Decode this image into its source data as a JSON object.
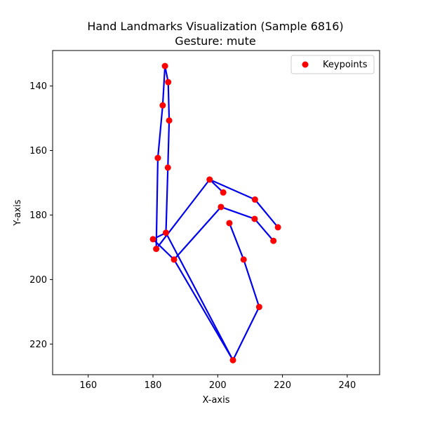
{
  "chart_data": {
    "type": "scatter",
    "title": "Hand Landmarks Visualization (Sample 6816)",
    "subtitle": "Gesture: mute",
    "xlabel": "X-axis",
    "ylabel": "Y-axis",
    "xlim": [
      149,
      250
    ],
    "ylim": [
      229.5,
      129
    ],
    "y_inverted": true,
    "grid": false,
    "x_ticks": [
      160,
      180,
      200,
      220,
      240
    ],
    "y_ticks": [
      140,
      160,
      180,
      200,
      220
    ],
    "legend": {
      "placement": "top-right",
      "entries": [
        "Keypoints"
      ]
    },
    "point_color": "#ff0000",
    "line_color": "#0000ee",
    "series": [
      {
        "name": "Keypoints",
        "points": [
          [
            204.7,
            225.0
          ],
          [
            212.8,
            208.5
          ],
          [
            208.0,
            193.8
          ],
          [
            203.6,
            182.5
          ],
          [
            201.0,
            177.5
          ],
          [
            186.5,
            193.8
          ],
          [
            180.0,
            187.5
          ],
          [
            184.0,
            185.5
          ],
          [
            181.5,
            162.3
          ],
          [
            185.0,
            150.7
          ],
          [
            183.7,
            133.8
          ],
          [
            184.7,
            138.8
          ],
          [
            183.0,
            146.0
          ],
          [
            184.6,
            165.3
          ],
          [
            197.5,
            169.0
          ],
          [
            201.7,
            173.0
          ],
          [
            211.5,
            175.2
          ],
          [
            218.6,
            183.8
          ],
          [
            211.4,
            181.2
          ],
          [
            217.2,
            188.0
          ],
          [
            181.0,
            190.5
          ]
        ]
      }
    ],
    "connections": [
      [
        0,
        1
      ],
      [
        1,
        2
      ],
      [
        2,
        3
      ],
      [
        0,
        5
      ],
      [
        5,
        6
      ],
      [
        6,
        7
      ],
      [
        7,
        0
      ],
      [
        20,
        8
      ],
      [
        8,
        12
      ],
      [
        12,
        10
      ],
      [
        10,
        11
      ],
      [
        11,
        9
      ],
      [
        9,
        13
      ],
      [
        13,
        7
      ],
      [
        20,
        14
      ],
      [
        14,
        15
      ],
      [
        14,
        16
      ],
      [
        16,
        17
      ],
      [
        5,
        4
      ],
      [
        4,
        18
      ],
      [
        18,
        19
      ]
    ]
  }
}
